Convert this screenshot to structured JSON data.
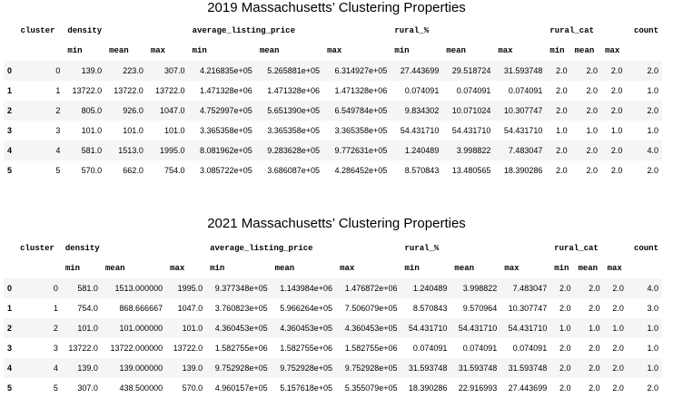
{
  "tables": [
    {
      "title": "2019 Massachusetts’ Clustering Properties",
      "groups": [
        "cluster",
        "density",
        "average_listing_price",
        "rural_%",
        "rural_cat",
        "count"
      ],
      "subs": [
        "min",
        "mean",
        "max",
        "min",
        "mean",
        "max",
        "min",
        "mean",
        "max",
        "min",
        "mean",
        "max"
      ],
      "rows": [
        [
          "0",
          "0",
          "139.0",
          "223.0",
          "307.0",
          "4.216835e+05",
          "5.265881e+05",
          "6.314927e+05",
          "27.443699",
          "29.518724",
          "31.593748",
          "2.0",
          "2.0",
          "2.0",
          "2.0"
        ],
        [
          "1",
          "1",
          "13722.0",
          "13722.0",
          "13722.0",
          "1.471328e+06",
          "1.471328e+06",
          "1.471328e+06",
          "0.074091",
          "0.074091",
          "0.074091",
          "2.0",
          "2.0",
          "2.0",
          "1.0"
        ],
        [
          "2",
          "2",
          "805.0",
          "926.0",
          "1047.0",
          "4.752997e+05",
          "5.651390e+05",
          "6.549784e+05",
          "9.834302",
          "10.071024",
          "10.307747",
          "2.0",
          "2.0",
          "2.0",
          "2.0"
        ],
        [
          "3",
          "3",
          "101.0",
          "101.0",
          "101.0",
          "3.365358e+05",
          "3.365358e+05",
          "3.365358e+05",
          "54.431710",
          "54.431710",
          "54.431710",
          "1.0",
          "1.0",
          "1.0",
          "1.0"
        ],
        [
          "4",
          "4",
          "581.0",
          "1513.0",
          "1995.0",
          "8.081962e+05",
          "9.283628e+05",
          "9.772631e+05",
          "1.240489",
          "3.998822",
          "7.483047",
          "2.0",
          "2.0",
          "2.0",
          "4.0"
        ],
        [
          "5",
          "5",
          "570.0",
          "662.0",
          "754.0",
          "3.085722e+05",
          "3.686087e+05",
          "4.286452e+05",
          "8.570843",
          "13.480565",
          "18.390286",
          "2.0",
          "2.0",
          "2.0",
          "2.0"
        ]
      ]
    },
    {
      "title": "2021 Massachusetts’ Clustering Properties",
      "groups": [
        "cluster",
        "density",
        "average_listing_price",
        "rural_%",
        "rural_cat",
        "count"
      ],
      "subs": [
        "min",
        "mean",
        "max",
        "min",
        "mean",
        "max",
        "min",
        "mean",
        "max",
        "min",
        "mean",
        "max"
      ],
      "rows": [
        [
          "0",
          "0",
          "581.0",
          "1513.000000",
          "1995.0",
          "9.377348e+05",
          "1.143984e+06",
          "1.476872e+06",
          "1.240489",
          "3.998822",
          "7.483047",
          "2.0",
          "2.0",
          "2.0",
          "4.0"
        ],
        [
          "1",
          "1",
          "754.0",
          "868.666667",
          "1047.0",
          "3.760823e+05",
          "5.966264e+05",
          "7.506079e+05",
          "8.570843",
          "9.570964",
          "10.307747",
          "2.0",
          "2.0",
          "2.0",
          "3.0"
        ],
        [
          "2",
          "2",
          "101.0",
          "101.000000",
          "101.0",
          "4.360453e+05",
          "4.360453e+05",
          "4.360453e+05",
          "54.431710",
          "54.431710",
          "54.431710",
          "1.0",
          "1.0",
          "1.0",
          "1.0"
        ],
        [
          "3",
          "3",
          "13722.0",
          "13722.000000",
          "13722.0",
          "1.582755e+06",
          "1.582755e+06",
          "1.582755e+06",
          "0.074091",
          "0.074091",
          "0.074091",
          "2.0",
          "2.0",
          "2.0",
          "1.0"
        ],
        [
          "4",
          "4",
          "139.0",
          "139.000000",
          "139.0",
          "9.752928e+05",
          "9.752928e+05",
          "9.752928e+05",
          "31.593748",
          "31.593748",
          "31.593748",
          "2.0",
          "2.0",
          "2.0",
          "1.0"
        ],
        [
          "5",
          "5",
          "307.0",
          "438.500000",
          "570.0",
          "4.960157e+05",
          "5.157618e+05",
          "5.355079e+05",
          "18.390286",
          "22.916993",
          "27.443699",
          "2.0",
          "2.0",
          "2.0",
          "2.0"
        ]
      ]
    }
  ]
}
